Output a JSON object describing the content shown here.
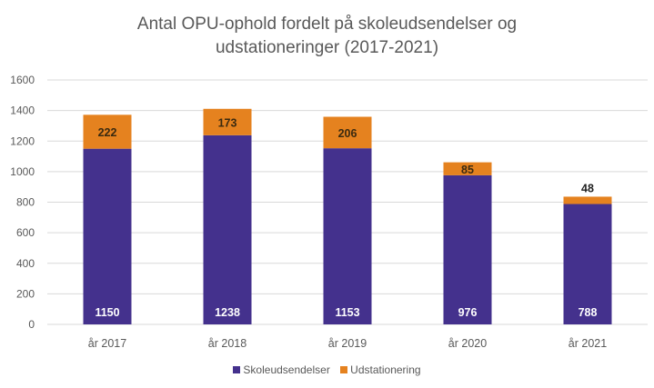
{
  "chart_data": {
    "type": "bar",
    "stacked": true,
    "title_lines": [
      "Antal OPU-ophold fordelt på skoleudsendelser og",
      "udstationeringer (2017-2021)"
    ],
    "xlabel": "",
    "ylabel": "",
    "categories": [
      "år 2017",
      "år 2018",
      "år 2019",
      "år 2020",
      "år 2021"
    ],
    "ylim": [
      0,
      1600
    ],
    "yticks": [
      "0",
      "200",
      "400",
      "600",
      "800",
      "1000",
      "1200",
      "1400",
      "1600"
    ],
    "grid": true,
    "legend_position": "bottom",
    "series": [
      {
        "name": "Skoleudsendelser",
        "values": [
          1150,
          1238,
          1153,
          976,
          788
        ],
        "color": "#44318d",
        "label_color": "#ffffff"
      },
      {
        "name": "Udstationering",
        "values": [
          222,
          173,
          206,
          85,
          48
        ],
        "color": "#e5821f",
        "label_color": "#3a2a10"
      }
    ]
  }
}
